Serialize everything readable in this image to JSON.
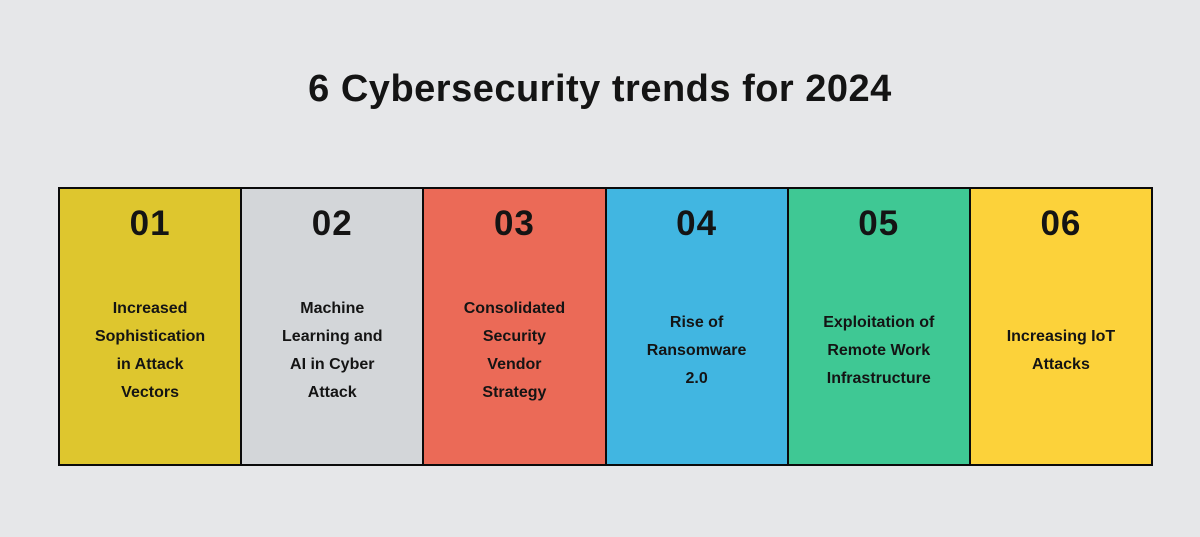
{
  "title": "6 Cybersecurity trends for 2024",
  "trends": [
    {
      "number": "01",
      "label": [
        "Increased",
        "Sophistication",
        "in Attack",
        "Vectors"
      ],
      "color": "#dec62e"
    },
    {
      "number": "02",
      "label": [
        "Machine",
        "Learning and",
        "AI in Cyber",
        "Attack"
      ],
      "color": "#d3d6d9"
    },
    {
      "number": "03",
      "label": [
        "Consolidated",
        "Security",
        "Vendor",
        "Strategy"
      ],
      "color": "#eb6a57"
    },
    {
      "number": "04",
      "label": [
        "Rise of",
        "Ransomware",
        "2.0"
      ],
      "color": "#41b6e1"
    },
    {
      "number": "05",
      "label": [
        "Exploitation of",
        "Remote Work",
        "Infrastructure"
      ],
      "color": "#3fc894"
    },
    {
      "number": "06",
      "label": [
        "Increasing IoT",
        "Attacks"
      ],
      "color": "#fcd23a"
    }
  ],
  "colors": {
    "background": "#e6e7e9",
    "border": "#0b0b0b",
    "text": "#141414"
  }
}
